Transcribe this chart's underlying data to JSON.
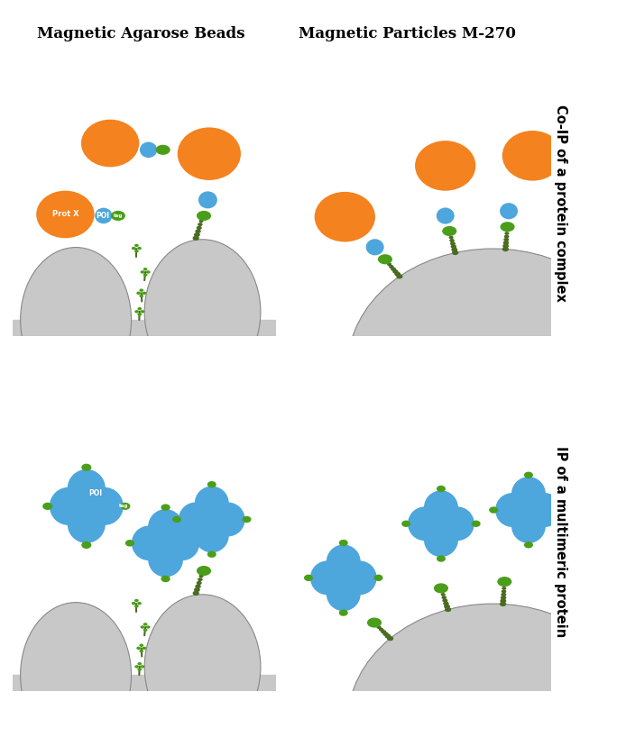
{
  "title_left": "Magnetic Agarose Beads",
  "title_right": "Magnetic Particles M-270",
  "label_top_right": "Co-IP of a protein complex",
  "label_bottom_right": "IP of a multimeric protein",
  "orange_color": "#F4821E",
  "blue_color": "#4DA6DC",
  "green_color": "#4A9E1A",
  "dark_green": "#4A6B20",
  "gray_color": "#C8C8C8",
  "gray_outline": "#888888",
  "white": "#FFFFFF"
}
